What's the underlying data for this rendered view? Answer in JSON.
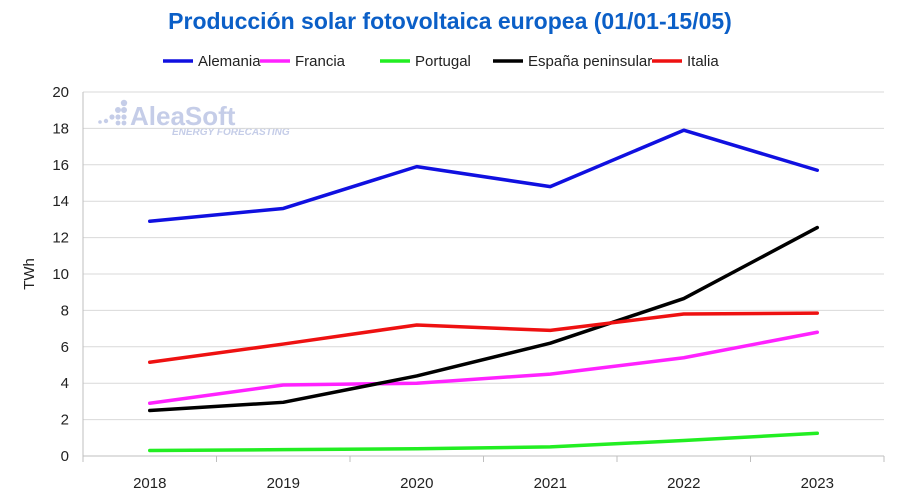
{
  "chart_data": {
    "type": "line",
    "title": "Producción solar fotovoltaica europea (01/01-15/05)",
    "title_color": "#0b5fc7",
    "ylabel": "TWh",
    "xlabel": "",
    "categories": [
      "2018",
      "2019",
      "2020",
      "2021",
      "2022",
      "2023"
    ],
    "ylim": [
      0,
      20
    ],
    "yticks": [
      0,
      2,
      4,
      6,
      8,
      10,
      12,
      14,
      16,
      18,
      20
    ],
    "grid": true,
    "legend_position": "top",
    "series": [
      {
        "name": "Alemania",
        "color": "#1010e0",
        "values": [
          12.9,
          13.6,
          15.9,
          14.8,
          17.9,
          15.7
        ]
      },
      {
        "name": "Francia",
        "color": "#ff22ff",
        "values": [
          2.9,
          3.9,
          4.0,
          4.5,
          5.4,
          6.8
        ]
      },
      {
        "name": "Portugal",
        "color": "#22ee22",
        "values": [
          0.3,
          0.35,
          0.4,
          0.5,
          0.85,
          1.25
        ]
      },
      {
        "name": "España peninsular",
        "color": "#000000",
        "values": [
          2.5,
          2.95,
          4.4,
          6.2,
          8.65,
          12.55
        ]
      },
      {
        "name": "Italia",
        "color": "#ee1111",
        "values": [
          5.15,
          6.15,
          7.2,
          6.9,
          7.8,
          7.85
        ]
      }
    ]
  },
  "watermark": {
    "brand": "AleaSoft",
    "tagline": "ENERGY FORECASTING",
    "color": "#c5cde8",
    "icon": "dots-logo-icon"
  }
}
